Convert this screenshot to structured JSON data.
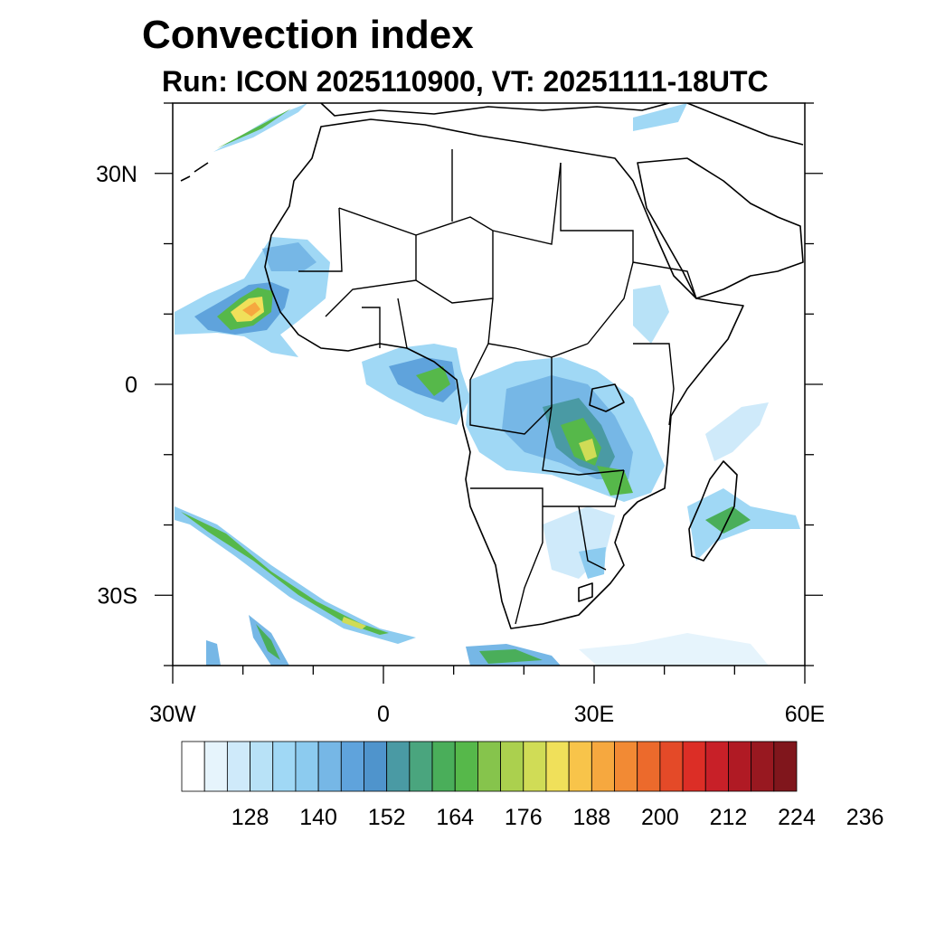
{
  "title": "Convection index",
  "subtitle": "Run: ICON 2025110900,  VT: 20251111-18UTC",
  "map": {
    "lat_range": [
      -40,
      40
    ],
    "lon_range": [
      -30,
      60
    ],
    "lat_ticks": [
      {
        "value": 30,
        "label": "30N"
      },
      {
        "value": 0,
        "label": "0"
      },
      {
        "value": -30,
        "label": "30S"
      }
    ],
    "lon_ticks": [
      {
        "value": -30,
        "label": "30W"
      },
      {
        "value": 0,
        "label": "0"
      },
      {
        "value": 30,
        "label": "30E"
      },
      {
        "value": 60,
        "label": "60E"
      }
    ]
  },
  "colorbar": {
    "colors": [
      "#ffffff",
      "#e6f4fc",
      "#cfeafa",
      "#b8e2f7",
      "#a0d8f5",
      "#8ccbef",
      "#76b7e6",
      "#5fa3dc",
      "#4f94cc",
      "#4a9aa4",
      "#4aa57e",
      "#4aae5a",
      "#56b84a",
      "#86c44c",
      "#abd04e",
      "#d0dc56",
      "#f0e05a",
      "#f8c44a",
      "#f6a83f",
      "#f28a34",
      "#ec6a2c",
      "#e44a28",
      "#dc2e26",
      "#c82028",
      "#b01a24",
      "#981820",
      "#80161c"
    ],
    "labels": [
      {
        "value": 128,
        "text": "128"
      },
      {
        "value": 140,
        "text": "140"
      },
      {
        "value": 152,
        "text": "152"
      },
      {
        "value": 164,
        "text": "164"
      },
      {
        "value": 176,
        "text": "176"
      },
      {
        "value": 188,
        "text": "188"
      },
      {
        "value": 200,
        "text": "200"
      },
      {
        "value": 212,
        "text": "212"
      },
      {
        "value": 224,
        "text": "224"
      },
      {
        "value": 236,
        "text": "236"
      }
    ]
  }
}
